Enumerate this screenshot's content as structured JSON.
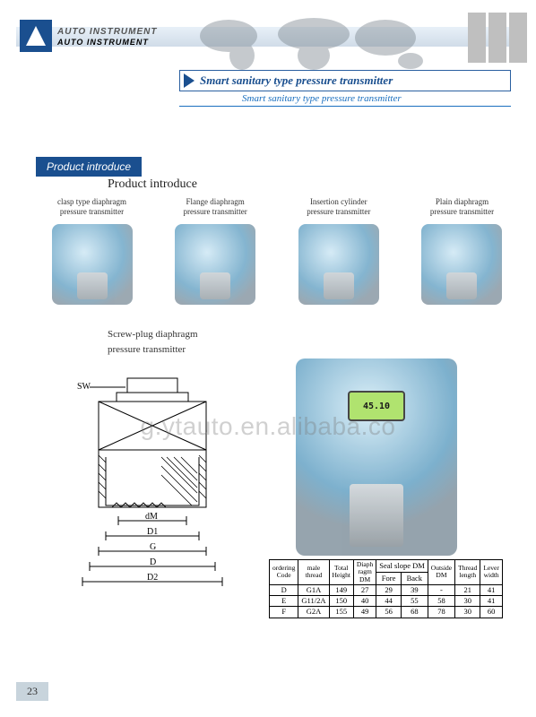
{
  "brand": {
    "line1": "AUTO INSTRUMENT",
    "line2": "AUTO INSTRUMENT"
  },
  "title": {
    "main": "Smart sanitary type pressure transmitter",
    "sub": "Smart sanitary type pressure transmitter"
  },
  "section": {
    "tag": "Product introduce",
    "subtitle": "Product introduce"
  },
  "products": [
    {
      "label": "clasp type diaphragm\npressure transmitter"
    },
    {
      "label": "Flange diaphragm\npressure transmitter"
    },
    {
      "label": "Insertion cylinder\npressure transmitter"
    },
    {
      "label": "Plain diaphragm\npressure transmitter"
    }
  ],
  "screw": {
    "title1": "Screw-plug diaphragm",
    "title2": "pressure transmitter"
  },
  "lcd": "45.10",
  "drawing_labels": {
    "sw": "SW",
    "dM": "dM",
    "D1": "D1",
    "G": "G",
    "D": "D",
    "D2": "D2"
  },
  "table": {
    "headers": {
      "code": "ordering\nCode",
      "thread": "male\nthread",
      "height": "Total\nHeight",
      "diaph": "Diaph\nragm\nDM",
      "seal_group": "Seal slope DM",
      "fore": "Fore",
      "back": "Back",
      "outside": "Outside\nDM",
      "tlen": "Thread\nlength",
      "lever": "Lever\nwidth"
    },
    "rows": [
      {
        "code": "D",
        "thread": "G1A",
        "height": "149",
        "diaph": "27",
        "fore": "29",
        "back": "39",
        "outside": "-",
        "tlen": "21",
        "lever": "41"
      },
      {
        "code": "E",
        "thread": "G11/2A",
        "height": "150",
        "diaph": "40",
        "fore": "44",
        "back": "55",
        "outside": "58",
        "tlen": "30",
        "lever": "41"
      },
      {
        "code": "F",
        "thread": "G2A",
        "height": "155",
        "diaph": "49",
        "fore": "56",
        "back": "68",
        "outside": "78",
        "tlen": "30",
        "lever": "60"
      }
    ]
  },
  "watermark": "g.ytauto.en.alibaba.co",
  "page_number": "23",
  "colors": {
    "brand_blue": "#1a4f8f",
    "link_blue": "#1a6fbf"
  }
}
